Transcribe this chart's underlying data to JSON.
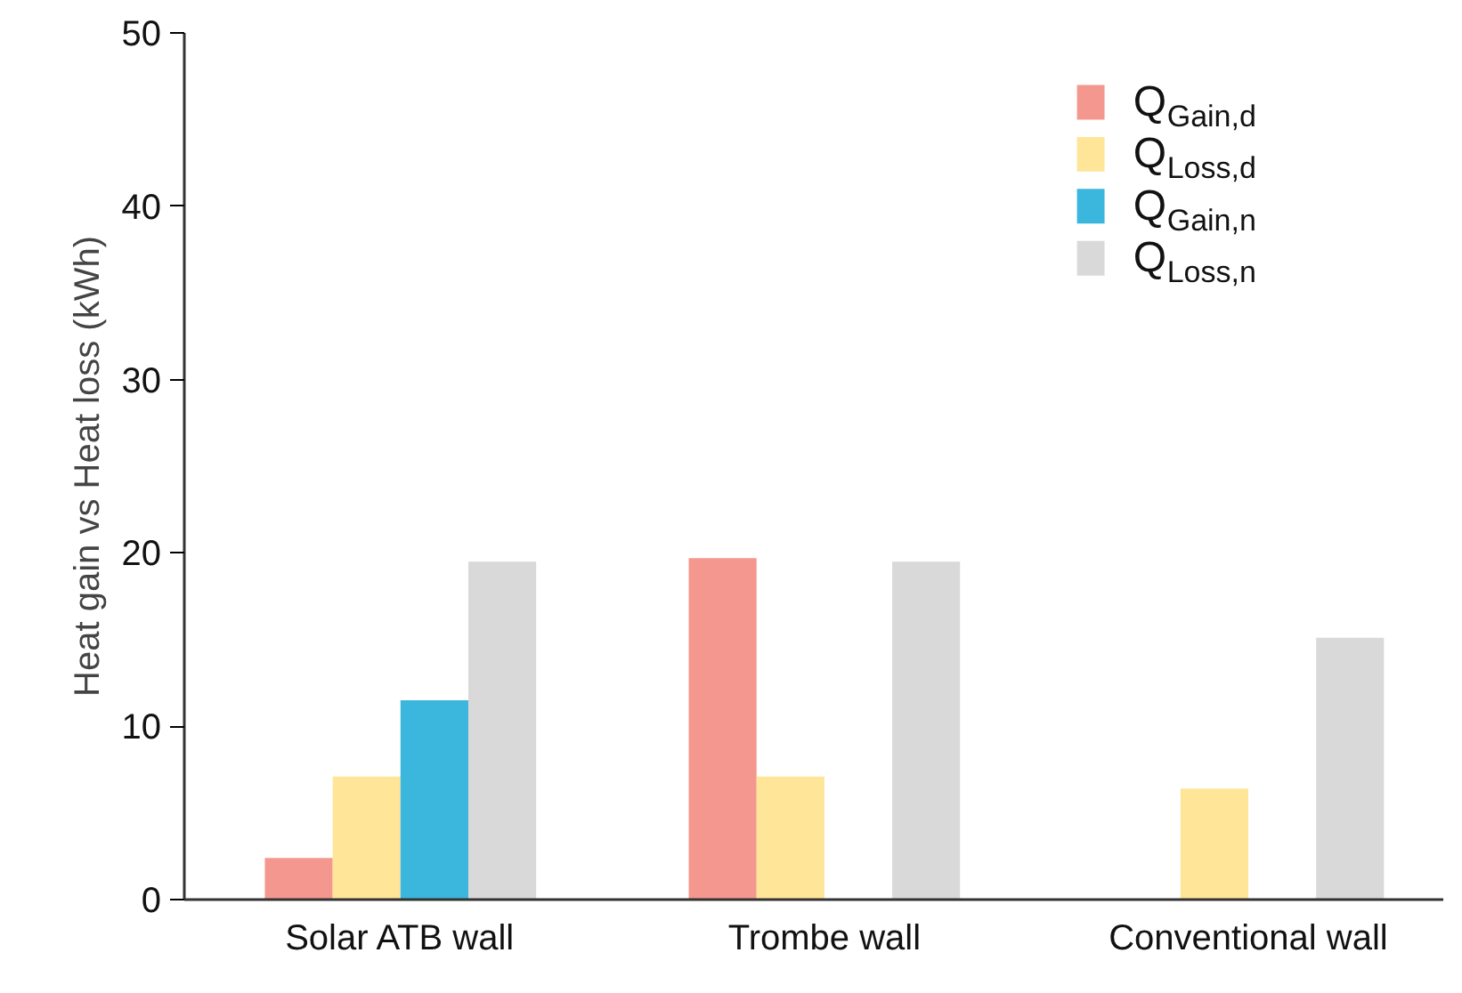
{
  "chart_data": {
    "type": "bar",
    "ylabel": "Heat gain vs Heat loss (kWh)",
    "categories": [
      "Solar ATB wall",
      "Trombe wall",
      "Conventional wall"
    ],
    "series": [
      {
        "name": "Q$_{Gain,d}$",
        "color": "#f4978e",
        "values": [
          2.4,
          19.7,
          null
        ]
      },
      {
        "name": "Q$_{Loss,d}$",
        "color": "#fee598",
        "values": [
          7.1,
          7.1,
          6.4
        ]
      },
      {
        "name": "Q$_{Gain,n}$",
        "color": "#3bb6dd",
        "values": [
          11.5,
          null,
          null
        ]
      },
      {
        "name": "Q$_{Loss,n}$",
        "color": "#d9d9d9",
        "values": [
          19.5,
          19.5,
          15.1
        ]
      }
    ],
    "ylim": [
      0,
      50
    ],
    "yticks": [
      0,
      10,
      20,
      30,
      40,
      50
    ],
    "grid": false,
    "legend": "top right"
  }
}
